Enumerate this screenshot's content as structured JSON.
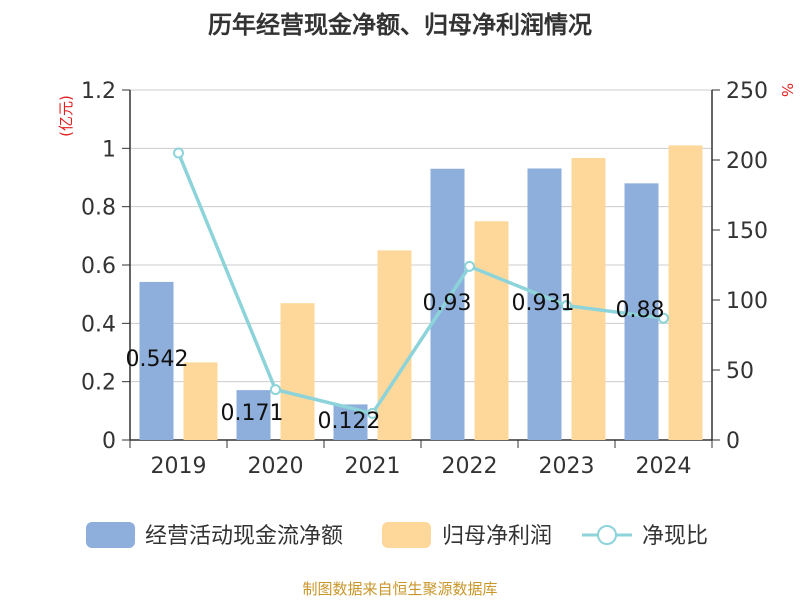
{
  "chart_data": {
    "type": "bar+line",
    "title": "历年经营现金净额、归母净利润情况",
    "categories": [
      "2019",
      "2020",
      "2021",
      "2022",
      "2023",
      "2024"
    ],
    "series": [
      {
        "name": "经营活动现金流净额",
        "type": "bar",
        "axis": "left",
        "color": "#8eafdb",
        "values": [
          0.542,
          0.171,
          0.122,
          0.93,
          0.931,
          0.88
        ]
      },
      {
        "name": "归母净利润",
        "type": "bar",
        "axis": "left",
        "color": "#fdd89a",
        "values": [
          0.266,
          0.469,
          0.65,
          0.75,
          0.967,
          1.01
        ]
      },
      {
        "name": "净现比",
        "type": "line",
        "axis": "right",
        "color": "#8dd3da",
        "values": [
          205,
          36,
          19,
          124,
          96,
          87
        ]
      }
    ],
    "data_labels": [
      "0.542",
      "0.171",
      "0.122",
      "0.93",
      "0.931",
      "0.88"
    ],
    "y_left": {
      "unit": "(亿元)",
      "ylim": [
        0,
        1.2
      ],
      "ticks": [
        "0",
        "0.2",
        "0.4",
        "0.6",
        "0.8",
        "1",
        "1.2"
      ]
    },
    "y_right": {
      "unit": "%",
      "ylim": [
        0,
        250
      ],
      "ticks": [
        "0",
        "50",
        "100",
        "150",
        "200",
        "250"
      ]
    },
    "grid": true,
    "legend_position": "bottom",
    "source": "制图数据来自恒生聚源数据库"
  }
}
